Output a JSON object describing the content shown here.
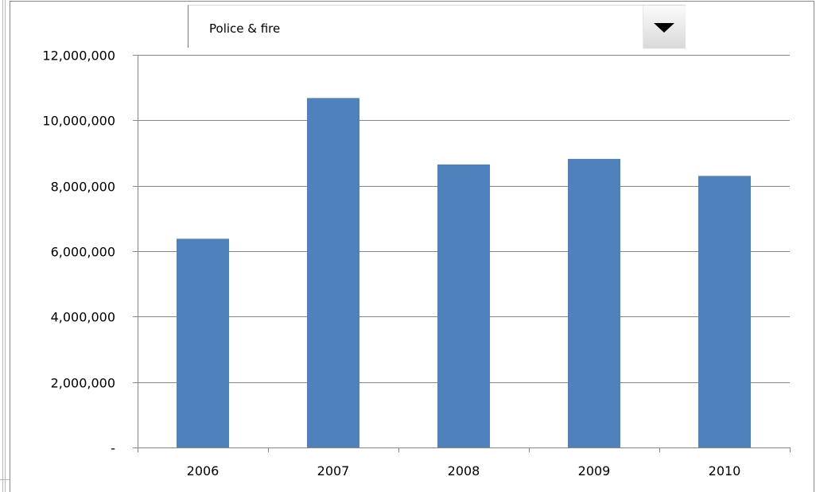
{
  "dropdown": {
    "selected": "Police & fire",
    "icon": "chevron-down-icon"
  },
  "chart_data": {
    "type": "bar",
    "categories": [
      "2006",
      "2007",
      "2008",
      "2009",
      "2010"
    ],
    "values": [
      6380000,
      10680000,
      8650000,
      8820000,
      8300000
    ],
    "ylim": [
      0,
      12000000
    ],
    "yticks": [
      0,
      2000000,
      4000000,
      6000000,
      8000000,
      10000000,
      12000000
    ],
    "ytick_labels": [
      "-",
      "2,000,000",
      "4,000,000",
      "6,000,000",
      "8,000,000",
      "10,000,000",
      "12,000,000"
    ],
    "grid": true,
    "bar_color": "#4f81bd",
    "grid_color": "#868686",
    "title": "",
    "xlabel": "",
    "ylabel": ""
  }
}
